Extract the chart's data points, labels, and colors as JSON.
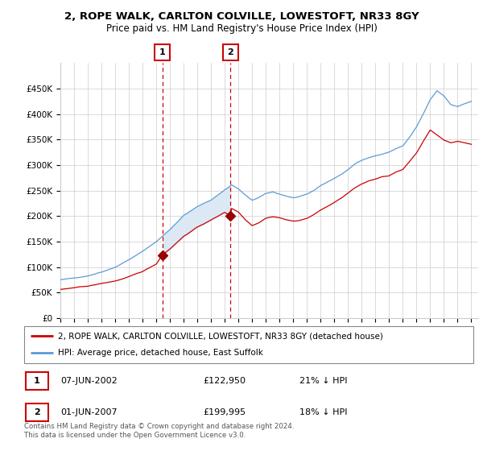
{
  "title": "2, ROPE WALK, CARLTON COLVILLE, LOWESTOFT, NR33 8GY",
  "subtitle": "Price paid vs. HM Land Registry's House Price Index (HPI)",
  "legend_line1": "2, ROPE WALK, CARLTON COLVILLE, LOWESTOFT, NR33 8GY (detached house)",
  "legend_line2": "HPI: Average price, detached house, East Suffolk",
  "transaction1_date": "07-JUN-2002",
  "transaction1_price": "£122,950",
  "transaction1_hpi": "21% ↓ HPI",
  "transaction2_date": "01-JUN-2007",
  "transaction2_price": "£199,995",
  "transaction2_hpi": "18% ↓ HPI",
  "footnote": "Contains HM Land Registry data © Crown copyright and database right 2024.\nThis data is licensed under the Open Government Licence v3.0.",
  "hpi_color": "#5b9bd5",
  "hpi_fill_color": "#dce9f5",
  "price_color": "#cc0000",
  "marker_color": "#990000",
  "dashed_color": "#cc0000",
  "marker1_x": 2002.44,
  "marker1_y": 122950,
  "marker2_x": 2007.42,
  "marker2_y": 199995,
  "ylim": [
    0,
    500000
  ],
  "xlim_start": 1995.0,
  "xlim_end": 2025.5
}
